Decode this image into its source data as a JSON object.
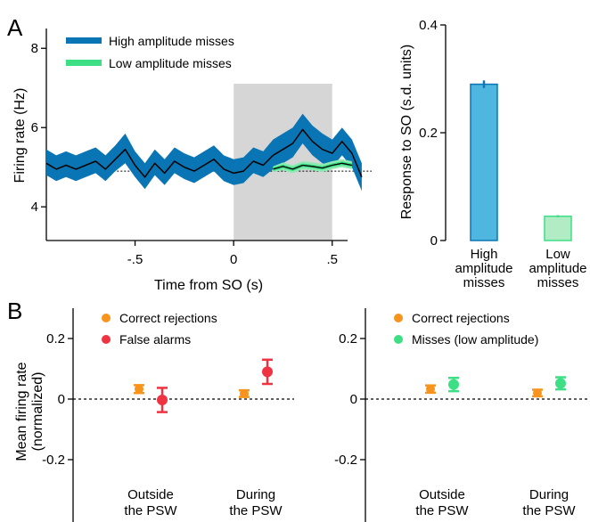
{
  "panels": {
    "a": "A",
    "b": "B"
  },
  "colors": {
    "high": "#0a75b5",
    "low": "#3ddf85",
    "low_fill": "#8deab2",
    "black": "#000000",
    "grey": "#d6d6d6",
    "bar_high": "#4fb6e0",
    "bar_low": "#b1ecc4",
    "orange": "#f7941d",
    "red": "#ef3340",
    "green": "#3ddf85"
  },
  "chart_data": [
    {
      "id": "a1",
      "type": "line",
      "xlabel": "Time from SO (s)",
      "ylabel": "Firing rate (Hz)",
      "xlim": [
        -0.95,
        0.7
      ],
      "ylim": [
        3.15,
        8.5
      ],
      "xticks": [
        {
          "v": -0.5,
          "label": "-.5"
        },
        {
          "v": 0,
          "label": "0"
        },
        {
          "v": 0.5,
          "label": ".5"
        }
      ],
      "yticks": [
        {
          "v": 4,
          "label": "4"
        },
        {
          "v": 6,
          "label": "6"
        },
        {
          "v": 8,
          "label": "8"
        }
      ],
      "shaded_window": [
        0,
        0.5
      ],
      "baseline": 4.9,
      "legend": [
        "High amplitude misses",
        "Low amplitude misses"
      ],
      "series": [
        {
          "name": "High amplitude misses",
          "x": [
            -0.95,
            -0.9,
            -0.85,
            -0.8,
            -0.75,
            -0.7,
            -0.65,
            -0.6,
            -0.55,
            -0.5,
            -0.45,
            -0.4,
            -0.35,
            -0.3,
            -0.25,
            -0.2,
            -0.15,
            -0.1,
            -0.05,
            0.0,
            0.05,
            0.1,
            0.15,
            0.2,
            0.25,
            0.3,
            0.35,
            0.4,
            0.45,
            0.5,
            0.55,
            0.6,
            0.65
          ],
          "y": [
            5.1,
            4.95,
            5.05,
            4.95,
            5.05,
            5.15,
            4.95,
            5.2,
            5.45,
            5.05,
            4.75,
            5.1,
            4.85,
            5.15,
            5.0,
            4.9,
            5.05,
            5.2,
            4.95,
            4.85,
            4.9,
            5.15,
            5.05,
            5.3,
            5.45,
            5.6,
            5.95,
            5.65,
            5.45,
            5.35,
            5.65,
            5.35,
            4.75
          ],
          "lo": [
            4.8,
            4.65,
            4.75,
            4.65,
            4.75,
            4.85,
            4.65,
            4.9,
            5.1,
            4.75,
            4.45,
            4.8,
            4.55,
            4.85,
            4.7,
            4.6,
            4.75,
            4.9,
            4.65,
            4.55,
            4.6,
            4.85,
            4.75,
            4.95,
            5.1,
            5.25,
            5.6,
            5.3,
            5.1,
            5.0,
            5.3,
            5.0,
            4.4
          ],
          "hi": [
            5.45,
            5.3,
            5.4,
            5.3,
            5.4,
            5.5,
            5.3,
            5.55,
            5.85,
            5.4,
            5.1,
            5.45,
            5.2,
            5.5,
            5.35,
            5.25,
            5.4,
            5.55,
            5.3,
            5.2,
            5.25,
            5.5,
            5.4,
            5.7,
            5.85,
            6.0,
            6.35,
            6.05,
            5.85,
            5.7,
            6.0,
            5.7,
            5.1
          ]
        },
        {
          "name": "Low amplitude misses",
          "x": [
            0.2,
            0.25,
            0.3,
            0.35,
            0.4,
            0.45,
            0.5,
            0.55,
            0.6
          ],
          "y": [
            4.95,
            5.02,
            4.95,
            5.05,
            5.02,
            4.98,
            5.05,
            5.1,
            5.05
          ],
          "lo": [
            4.88,
            4.92,
            4.85,
            4.95,
            4.92,
            4.88,
            4.95,
            5.0,
            4.95
          ],
          "hi": [
            5.02,
            5.12,
            5.05,
            5.15,
            5.12,
            5.08,
            5.15,
            5.2,
            5.15
          ]
        }
      ]
    },
    {
      "id": "a2",
      "type": "bar",
      "ylabel": "Response to SO (s.d. units)",
      "ylim": [
        0,
        0.4
      ],
      "yticks": [
        {
          "v": 0,
          "label": "0"
        },
        {
          "v": 0.2,
          "label": "0.2"
        },
        {
          "v": 0.4,
          "label": "0.4"
        }
      ],
      "categories": [
        [
          "High",
          "amplitude",
          "misses"
        ],
        [
          "Low",
          "amplitude",
          "misses"
        ]
      ],
      "values": [
        0.29,
        0.045
      ],
      "errors": [
        0.007,
        0.002
      ]
    },
    {
      "id": "b1",
      "type": "scatter",
      "ylabel": [
        "Mean firing rate",
        "(normalized)"
      ],
      "ylim": [
        -0.3,
        0.3
      ],
      "yticks": [
        {
          "v": 0.2,
          "label": "0.2"
        },
        {
          "v": 0,
          "label": "0"
        },
        {
          "v": -0.2,
          "label": "-0.2"
        }
      ],
      "groups": [
        [
          "Outside",
          "the PSW"
        ],
        [
          "During",
          "the PSW"
        ]
      ],
      "legend": [
        "Correct rejections",
        "False alarms"
      ],
      "series": [
        {
          "name": "Correct rejections",
          "values": [
            0.033,
            0.018
          ],
          "err": [
            0.013,
            0.011
          ]
        },
        {
          "name": "False alarms",
          "values": [
            -0.003,
            0.09
          ],
          "err": [
            0.04,
            0.04
          ]
        }
      ]
    },
    {
      "id": "b2",
      "type": "scatter",
      "ylim": [
        -0.3,
        0.3
      ],
      "yticks": [
        {
          "v": 0.2,
          "label": "0.2"
        },
        {
          "v": 0,
          "label": "0"
        },
        {
          "v": -0.2,
          "label": "-0.2"
        }
      ],
      "groups": [
        [
          "Outside",
          "the PSW"
        ],
        [
          "During",
          "the PSW"
        ]
      ],
      "legend": [
        "Correct rejections",
        "Misses (low amplitude)"
      ],
      "series": [
        {
          "name": "Correct rejections",
          "values": [
            0.033,
            0.02
          ],
          "err": [
            0.012,
            0.011
          ]
        },
        {
          "name": "Misses (low amplitude)",
          "values": [
            0.048,
            0.052
          ],
          "err": [
            0.022,
            0.02
          ]
        }
      ]
    }
  ]
}
